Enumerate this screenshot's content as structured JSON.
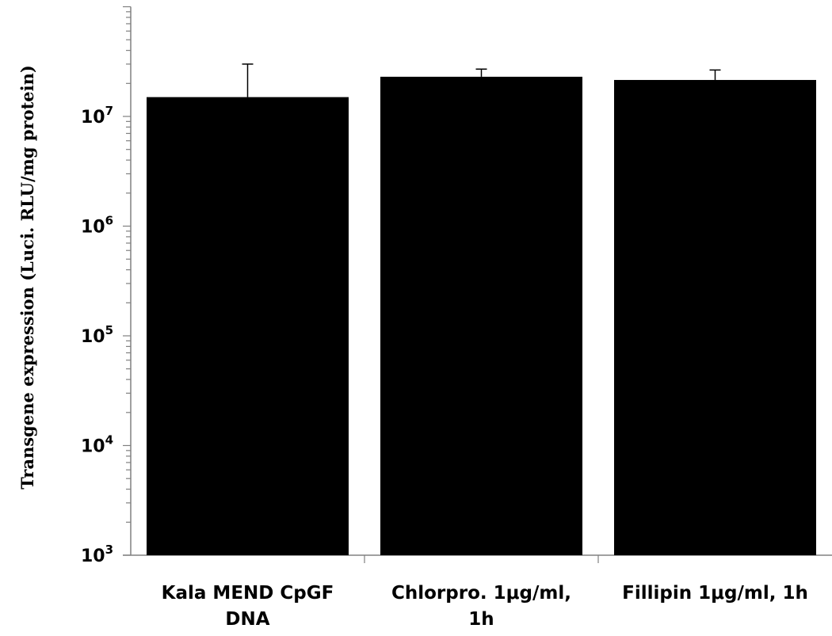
{
  "chart_data": {
    "type": "bar",
    "title": "",
    "xlabel": "",
    "ylabel": "Transgene expression (Luci.  RLU/mg protein)",
    "yscale": "log",
    "ylim": [
      1000,
      100000000
    ],
    "ytick_labels": [
      {
        "base": "10",
        "exp": "3",
        "value": 1000
      },
      {
        "base": "10",
        "exp": "4",
        "value": 10000
      },
      {
        "base": "10",
        "exp": "5",
        "value": 100000
      },
      {
        "base": "10",
        "exp": "6",
        "value": 1000000
      },
      {
        "base": "10",
        "exp": "7",
        "value": 10000000
      }
    ],
    "categories": [
      [
        "Kala MEND CpGF",
        "DNA"
      ],
      [
        "Chlorpro. 1μg/ml,",
        "1h"
      ],
      [
        "Fillipin 1μg/ml, 1h"
      ]
    ],
    "values": [
      15000000,
      23000000,
      21500000
    ],
    "error_upper": [
      30000000,
      27000000,
      26500000
    ],
    "bar_color": "#000000",
    "grid": false,
    "legend": "none"
  }
}
